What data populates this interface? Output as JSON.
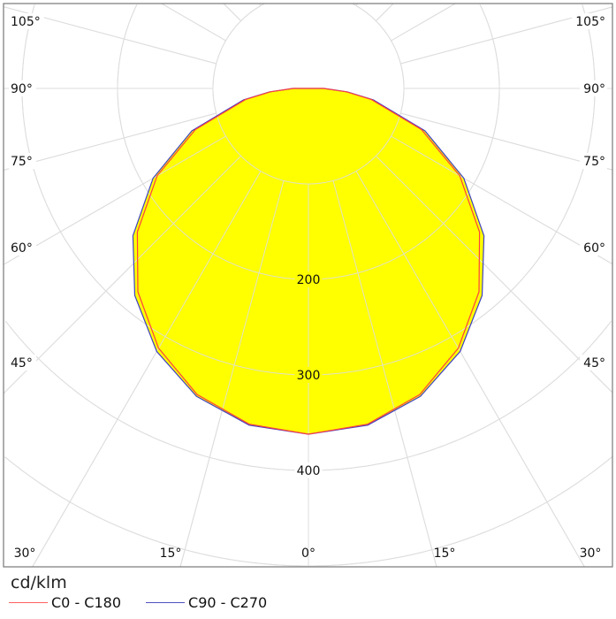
{
  "chart_data": {
    "type": "polar",
    "unit_label": "cd/klm",
    "radial_ticks": [
      100,
      200,
      300,
      400,
      500,
      600,
      700
    ],
    "radial_tick_labels": [
      "200",
      "300",
      "400"
    ],
    "radial_label_values": [
      200,
      300,
      400
    ],
    "angle_labels": {
      "bottom": [
        {
          "angle": 30,
          "text": "30°"
        },
        {
          "angle": 15,
          "text": "15°"
        },
        {
          "angle": 0,
          "text": "0°"
        },
        {
          "angle": 15,
          "text": "15°"
        },
        {
          "angle": 30,
          "text": "30°"
        }
      ],
      "sides": [
        {
          "angle": 45,
          "text": "45°"
        },
        {
          "angle": 60,
          "text": "60°"
        },
        {
          "angle": 75,
          "text": "75°"
        },
        {
          "angle": 90,
          "text": "90°"
        },
        {
          "angle": 105,
          "text": "105°"
        }
      ]
    },
    "fill_color": "#ffff00",
    "grid_color": "#dddddd",
    "angles": [
      0,
      10,
      20,
      30,
      40,
      50,
      60,
      70,
      80,
      85,
      90
    ],
    "series": [
      {
        "name": "C0 - C180",
        "color": "#ff4040",
        "values": [
          362,
          357,
          341,
          314,
          278,
          234,
          183,
          126,
          67,
          40,
          16
        ]
      },
      {
        "name": "C90 - C270",
        "color": "#4040c0",
        "values": [
          362,
          358,
          343,
          318,
          283,
          240,
          188,
          130,
          69,
          41,
          16
        ]
      }
    ]
  }
}
